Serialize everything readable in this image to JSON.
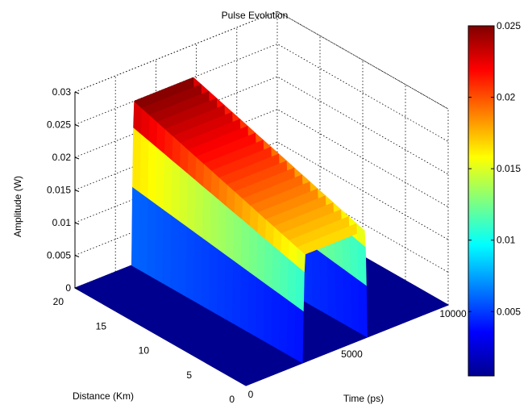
{
  "chart_data": {
    "type": "surface",
    "title": "Pulse Evolution",
    "xlabel": "Time (ps)",
    "ylabel": "Distance (Km)",
    "zlabel": "Amplitude (W)",
    "x_range": [
      0,
      10000
    ],
    "y_range": [
      0,
      20
    ],
    "z_range": [
      0,
      0.03
    ],
    "x_ticks": [
      "0",
      "5000",
      "10000"
    ],
    "y_ticks": [
      "0",
      "5",
      "10",
      "15",
      "20"
    ],
    "z_ticks": [
      "0",
      "0.005",
      "0.01",
      "0.015",
      "0.02",
      "0.025",
      "0.03"
    ],
    "colorbar": {
      "colormap": "jet",
      "range": [
        0.0005,
        0.025
      ],
      "ticks": [
        "0.005",
        "0.01",
        "0.015",
        "0.02",
        "0.025"
      ]
    },
    "pulse": {
      "t_start": 2800,
      "t_end": 6000,
      "peak_amplitude_at_distance_0": 0.0165,
      "peak_amplitude_at_distance_20": 0.025
    },
    "grid": true
  }
}
